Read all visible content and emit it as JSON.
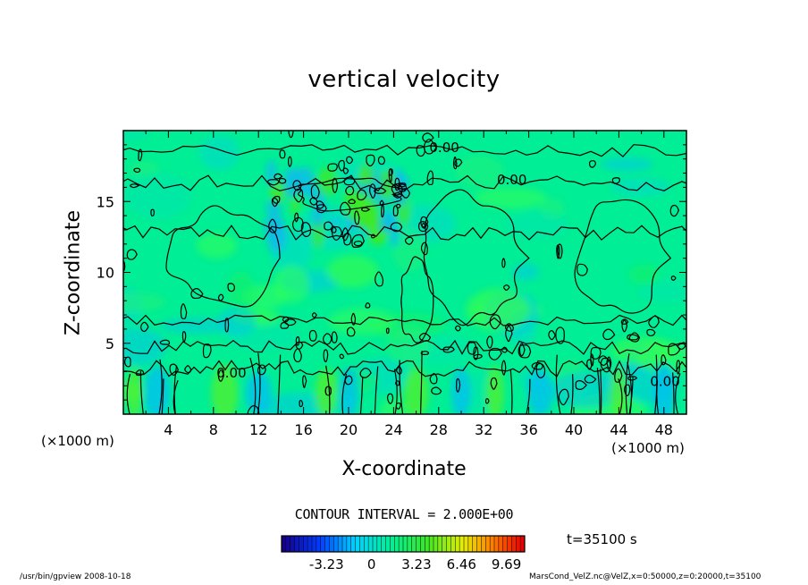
{
  "chart_data": {
    "type": "contour",
    "title": "vertical velocity",
    "xlabel": "X-coordinate",
    "ylabel": "Z-coordinate",
    "x_unit_left": "(×1000 m)",
    "x_unit_right": "(×1000 m)",
    "xlim": [
      0,
      50
    ],
    "ylim": [
      0,
      20
    ],
    "x_ticks": [
      4,
      8,
      12,
      16,
      20,
      24,
      28,
      32,
      36,
      40,
      44,
      48
    ],
    "y_ticks": [
      5,
      10,
      15
    ],
    "contour_interval_label": "CONTOUR INTERVAL = 2.000E+00",
    "contour_labels": [
      {
        "text": "0.00",
        "x": 28.5,
        "z": 18.5
      },
      {
        "text": "0.00",
        "x": 34.5,
        "z": 16.2
      },
      {
        "text": "0.00",
        "x": 9.6,
        "z": 2.6
      },
      {
        "text": "0.00",
        "x": 48.1,
        "z": 2.0
      },
      {
        "text": "0",
        "x": 18.2,
        "z": 1.3
      }
    ],
    "colorbar": {
      "ticks": [
        "-3.23",
        "0",
        "3.23",
        "6.46",
        "9.69"
      ],
      "tick_values": [
        -3.23,
        0,
        3.23,
        6.46,
        9.69
      ],
      "min": -6.46,
      "max": 11.0
    },
    "time_label": "t=35100 s"
  },
  "footer": {
    "left": "/usr/bin/gpview 2008-10-18",
    "right": "MarsCond_VelZ.nc@VelZ,x=0:50000,z=0:20000,t=35100"
  },
  "colors": {
    "field_base": "#00ee95",
    "contour_line": "#000000"
  }
}
